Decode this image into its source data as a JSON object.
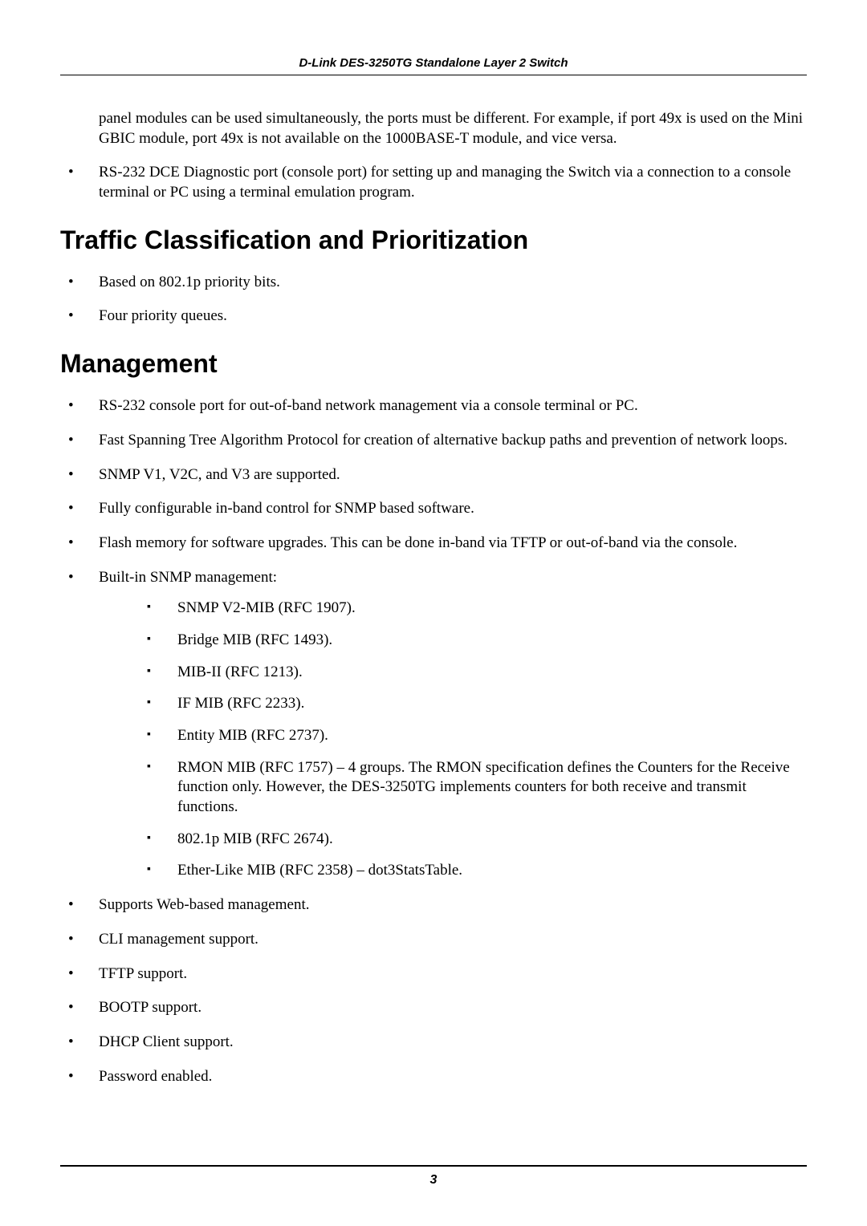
{
  "header": {
    "title": "D-Link DES-3250TG Standalone Layer 2 Switch"
  },
  "intro": {
    "continuation": "panel modules can be used simultaneously, the ports must be different. For example, if port 49x is used on the Mini GBIC module, port 49x is not available on the 1000BASE-T module, and vice versa.",
    "bullet": "RS-232 DCE Diagnostic port (console port) for setting up and managing the Switch via a connection to a console terminal or PC using a terminal emulation program."
  },
  "section1": {
    "heading": "Traffic Classification and Prioritization",
    "items": [
      "Based on 802.1p priority bits.",
      "Four priority queues."
    ]
  },
  "section2": {
    "heading": "Management",
    "items": [
      "RS-232 console port for out-of-band network management via a console terminal or PC.",
      "Fast Spanning Tree Algorithm Protocol for creation of alternative backup paths and prevention of network loops.",
      "SNMP V1, V2C, and V3 are supported.",
      "Fully configurable in-band control for SNMP based software.",
      "Flash memory for software upgrades. This can be done in-band via TFTP or out-of-band via the console.",
      "Built-in SNMP management:"
    ],
    "sub_items": [
      "SNMP V2-MIB (RFC 1907).",
      "Bridge MIB (RFC 1493).",
      "MIB-II (RFC 1213).",
      "IF MIB (RFC 2233).",
      "Entity MIB (RFC 2737).",
      "RMON MIB (RFC 1757) – 4 groups. The RMON specification defines the Counters for the Receive function only. However, the DES-3250TG implements counters for both receive and transmit functions.",
      "802.1p MIB (RFC 2674).",
      "Ether-Like MIB (RFC 2358) – dot3StatsTable."
    ],
    "items_after": [
      "Supports Web-based management.",
      "CLI management support.",
      "TFTP support.",
      "BOOTP support.",
      "DHCP Client support.",
      "Password enabled."
    ]
  },
  "footer": {
    "page_number": "3"
  }
}
